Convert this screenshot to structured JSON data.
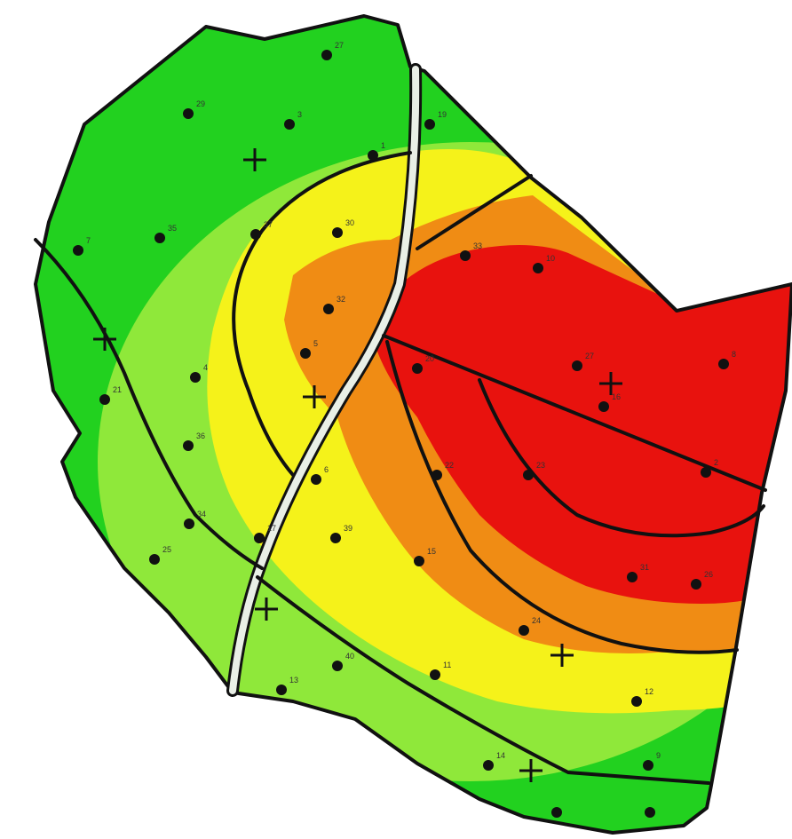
{
  "map": {
    "zone_colors": {
      "dark_green": "#22d11f",
      "light_green": "#8fe83a",
      "yellow": "#f5f21a",
      "orange": "#f08c14",
      "red": "#e8120e"
    },
    "boundary_color": "#111111",
    "point_color": "#111111",
    "marker_icon": "plus-icon",
    "point_icon": "dot-icon",
    "sample_labels": [
      "27",
      "29",
      "3",
      "1",
      "19",
      "7",
      "35",
      "37",
      "30",
      "33",
      "10",
      "32",
      "5",
      "4",
      "27",
      "8",
      "21",
      "20",
      "16",
      "36",
      "6",
      "22",
      "23",
      "2",
      "39",
      "17",
      "34",
      "25",
      "15",
      "31",
      "26",
      "24",
      "40",
      "13",
      "11",
      "12",
      "14",
      "9"
    ]
  }
}
